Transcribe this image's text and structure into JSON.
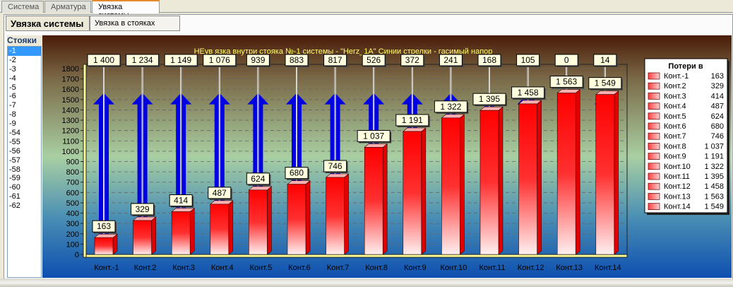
{
  "tabs": [
    {
      "label": "Система"
    },
    {
      "label": "Арматура"
    },
    {
      "label": "Увязка системы"
    }
  ],
  "subtabs": [
    {
      "label": "Увязка системы"
    },
    {
      "label": "Увязка в стояках"
    }
  ],
  "sidebar": {
    "title": "Стояки",
    "items": [
      "-1",
      "-2",
      "-3",
      "-4",
      "-5",
      "-6",
      "-7",
      "-8",
      "-9",
      "-54",
      "-55",
      "-56",
      "-57",
      "-58",
      "-59",
      "-60",
      "-61",
      "-62"
    ],
    "selected": "-1"
  },
  "chart_data": {
    "type": "bar",
    "title": "НЕув язка внутри стояка №-1  системы - \"Herz_1A\"  Синии стрелки - гасимый напор",
    "categories": [
      "Конт.-1",
      "Конт.2",
      "Конт.3",
      "Конт.4",
      "Конт.5",
      "Конт.6",
      "Конт.7",
      "Конт.8",
      "Конт.9",
      "Конт.10",
      "Конт.11",
      "Конт.12",
      "Конт.13",
      "Конт.14"
    ],
    "series": [
      {
        "name": "Потери в",
        "values": [
          163,
          329,
          414,
          487,
          624,
          680,
          746,
          1037,
          1191,
          1322,
          1395,
          1458,
          1563,
          1549
        ],
        "labels": [
          "163",
          "329",
          "414",
          "487",
          "624",
          "680",
          "746",
          "1 037",
          "1 191",
          "1 322",
          "1 395",
          "1 458",
          "1 563",
          "1 549"
        ],
        "color": "#ff0000"
      },
      {
        "values": [
          1400,
          1234,
          1149,
          1076,
          939,
          883,
          817,
          526,
          372,
          241,
          168,
          105,
          0,
          14
        ],
        "labels": [
          "1 400",
          "1 234",
          "1 149",
          "1 076",
          "939",
          "883",
          "817",
          "526",
          "372",
          "241",
          "168",
          "105",
          "0",
          "14"
        ],
        "color": "#0000ff"
      }
    ],
    "ylim": [
      0,
      1800
    ],
    "yticks": [
      "0",
      "100",
      "200",
      "300",
      "400",
      "500",
      "600",
      "700",
      "800",
      "900",
      "1000",
      "1100",
      "1200",
      "1300",
      "1400",
      "1500",
      "1600",
      "1700",
      "1800"
    ],
    "grid": true,
    "legend": {
      "title": "Потери в",
      "placement": "right"
    },
    "title_color": "#ffff66"
  }
}
